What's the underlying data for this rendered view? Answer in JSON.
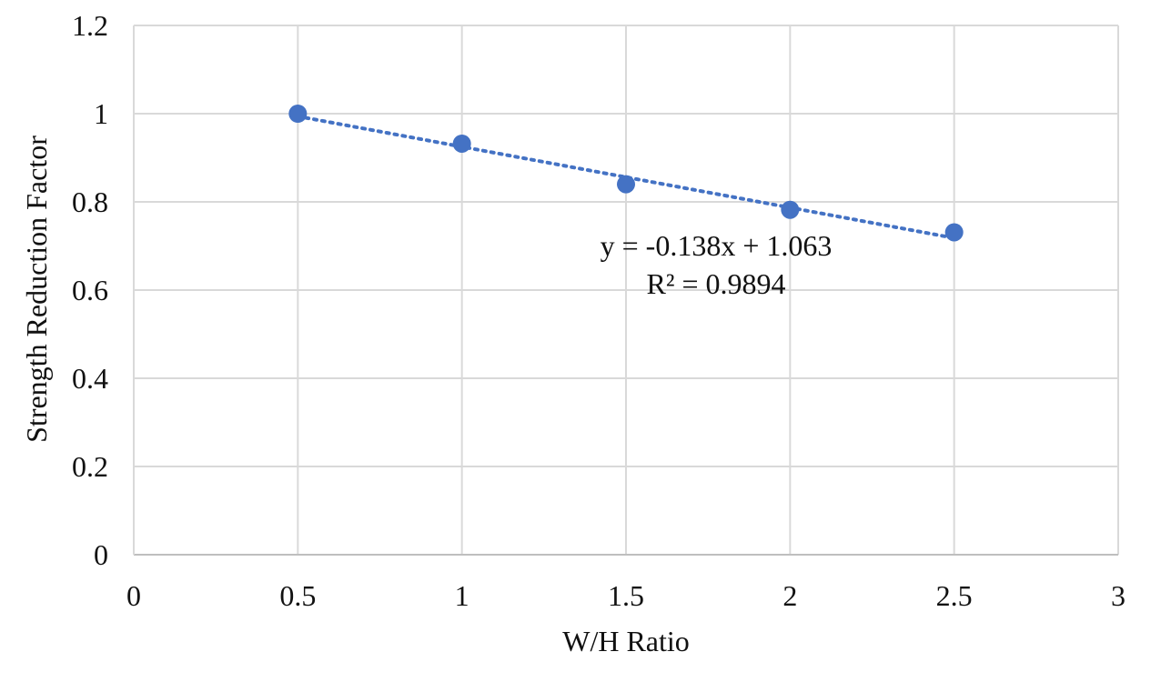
{
  "chart_data": {
    "type": "scatter",
    "title": "",
    "xlabel": "W/H Ratio",
    "ylabel": "Strength Reduction Factor",
    "xlim": [
      0,
      3
    ],
    "ylim": [
      0,
      1.2
    ],
    "xticks": [
      "0",
      "0.5",
      "1",
      "1.5",
      "2",
      "2.5",
      "3"
    ],
    "yticks": [
      "0",
      "0.2",
      "0.4",
      "0.6",
      "0.8",
      "1",
      "1.2"
    ],
    "grid": true,
    "legend": "none",
    "series": [
      {
        "points": [
          {
            "x": 0.5,
            "y": 1.0
          },
          {
            "x": 1.0,
            "y": 0.932
          },
          {
            "x": 1.5,
            "y": 0.84
          },
          {
            "x": 2.0,
            "y": 0.782
          },
          {
            "x": 2.5,
            "y": 0.731
          }
        ],
        "color": "#4472C4"
      }
    ],
    "trendline": {
      "type": "linear",
      "slope": -0.138,
      "intercept": 1.063,
      "style": "dotted",
      "color": "#4472C4"
    },
    "annotations": {
      "equation": "y = -0.138x + 1.063",
      "r_squared": "R² = 0.9894"
    },
    "colors": {
      "grid": "#d9d9d9",
      "axis": "#bfbfbf"
    }
  }
}
